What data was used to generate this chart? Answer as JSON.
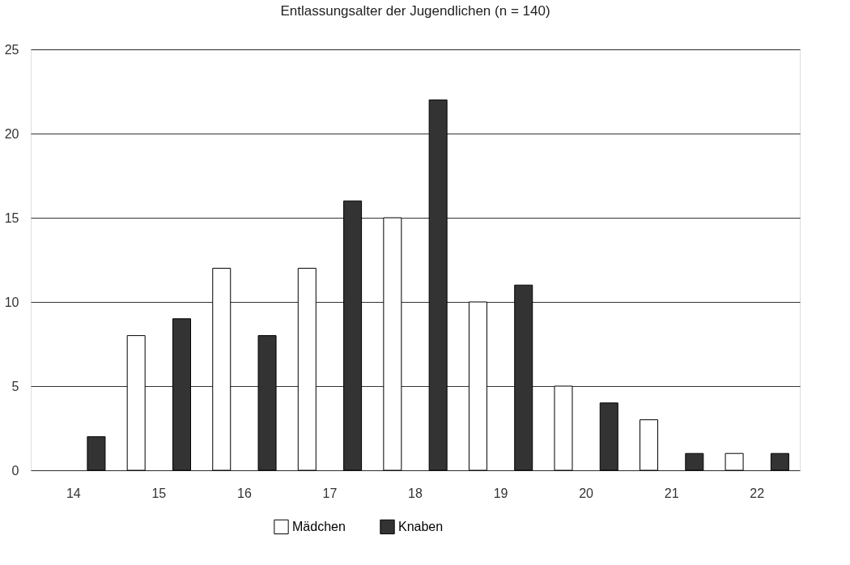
{
  "chart_data": {
    "type": "bar",
    "title": "Entlassungsalter der Jugendlichen (n = 140)",
    "categories": [
      "14",
      "15",
      "16",
      "17",
      "18",
      "19",
      "20",
      "21",
      "22"
    ],
    "series": [
      {
        "name": "Mädchen",
        "color": "#ffffff",
        "values": [
          null,
          8,
          12,
          12,
          15,
          10,
          5,
          3,
          1
        ]
      },
      {
        "name": "Knaben",
        "color": "#333333",
        "values": [
          2,
          9,
          8,
          16,
          22,
          11,
          4,
          1,
          1
        ]
      }
    ],
    "ylim": [
      0,
      25
    ],
    "yticks": [
      0,
      5,
      10,
      15,
      20,
      25
    ],
    "grid": "y",
    "legend": "bottom"
  }
}
